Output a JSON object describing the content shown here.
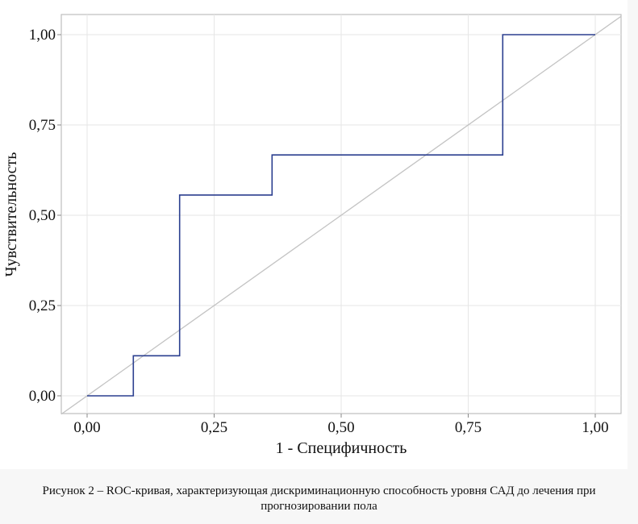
{
  "chart_data": {
    "type": "line",
    "xlabel": "1 - Специфичность",
    "ylabel": "Чувствительность",
    "xlim": [
      0,
      1
    ],
    "ylim": [
      0,
      1
    ],
    "x_ticks": [
      "0,00",
      "0,25",
      "0,50",
      "0,75",
      "1,00"
    ],
    "y_ticks": [
      "0,00",
      "0,25",
      "0,50",
      "0,75",
      "1,00"
    ],
    "tick_values": [
      0,
      0.25,
      0.5,
      0.75,
      1
    ],
    "grid": true,
    "series": [
      {
        "color": "#2b3f8f",
        "style": "step",
        "x": [
          0.0,
          0.091,
          0.091,
          0.182,
          0.182,
          0.364,
          0.364,
          0.818,
          0.818,
          1.0
        ],
        "y": [
          0.0,
          0.0,
          0.111,
          0.111,
          0.556,
          0.556,
          0.667,
          0.667,
          1.0,
          1.0
        ]
      },
      {
        "color": "#c3c3c3",
        "style": "reference",
        "x": [
          0,
          1
        ],
        "y": [
          0,
          1
        ]
      }
    ]
  },
  "caption": {
    "line1": "Рисунок 2 – ROC-кривая, характеризующая дискриминационную способность уровня САД до лечения при",
    "line2": "прогнозировании пола"
  }
}
